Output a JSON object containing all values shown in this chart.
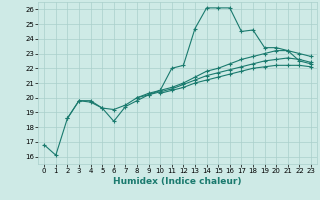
{
  "xlabel": "Humidex (Indice chaleur)",
  "xlim": [
    -0.5,
    23.5
  ],
  "ylim": [
    15.5,
    26.5
  ],
  "xticks": [
    0,
    1,
    2,
    3,
    4,
    5,
    6,
    7,
    8,
    9,
    10,
    11,
    12,
    13,
    14,
    15,
    16,
    17,
    18,
    19,
    20,
    21,
    22,
    23
  ],
  "yticks": [
    16,
    17,
    18,
    19,
    20,
    21,
    22,
    23,
    24,
    25,
    26
  ],
  "bg_color": "#ceeae6",
  "grid_color": "#aacfcb",
  "line_color": "#1a7a6e",
  "lines": [
    {
      "x": [
        0,
        1,
        2,
        3,
        4,
        5,
        6,
        7,
        8,
        9,
        10,
        11,
        12,
        13,
        14,
        15,
        16,
        17,
        18,
        19,
        20,
        21,
        22,
        23
      ],
      "y": [
        16.8,
        16.1,
        18.6,
        19.8,
        19.8,
        19.3,
        18.4,
        19.4,
        19.8,
        20.2,
        20.5,
        22.0,
        22.2,
        24.7,
        26.1,
        26.1,
        26.1,
        24.5,
        24.6,
        23.4,
        23.4,
        23.2,
        22.5,
        22.3
      ]
    },
    {
      "x": [
        2,
        3,
        4,
        5,
        6,
        7,
        8,
        9,
        10,
        11,
        12,
        13,
        14,
        15,
        16,
        17,
        18,
        19,
        20,
        21,
        22,
        23
      ],
      "y": [
        18.6,
        19.8,
        19.7,
        19.3,
        19.2,
        19.5,
        20.0,
        20.3,
        20.5,
        20.7,
        21.0,
        21.4,
        21.8,
        22.0,
        22.3,
        22.6,
        22.8,
        23.0,
        23.2,
        23.2,
        23.0,
        22.8
      ]
    },
    {
      "x": [
        8,
        9,
        10,
        11,
        12,
        13,
        14,
        15,
        16,
        17,
        18,
        19,
        20,
        21,
        22,
        23
      ],
      "y": [
        20.0,
        20.2,
        20.4,
        20.6,
        20.9,
        21.2,
        21.5,
        21.7,
        21.9,
        22.1,
        22.3,
        22.5,
        22.6,
        22.7,
        22.6,
        22.4
      ]
    },
    {
      "x": [
        10,
        11,
        12,
        13,
        14,
        15,
        16,
        17,
        18,
        19,
        20,
        21,
        22,
        23
      ],
      "y": [
        20.3,
        20.5,
        20.7,
        21.0,
        21.2,
        21.4,
        21.6,
        21.8,
        22.0,
        22.1,
        22.2,
        22.2,
        22.2,
        22.1
      ]
    }
  ]
}
